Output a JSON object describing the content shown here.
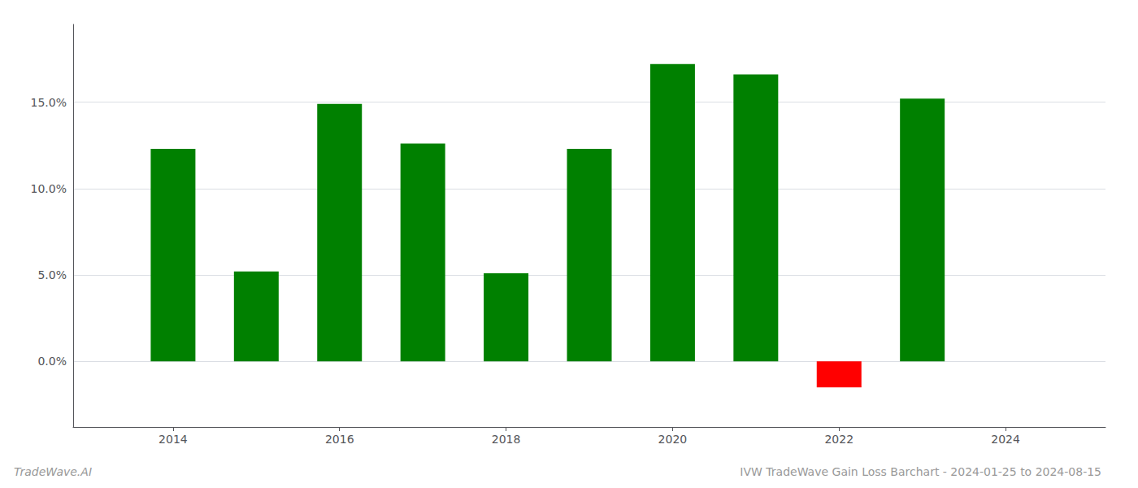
{
  "chart_data": {
    "type": "bar",
    "title": "IVW TradeWave Gain Loss Barchart - 2024-01-25 to 2024-08-15",
    "annotations": [
      "TradeWave.AI"
    ],
    "x": [
      2014,
      2015,
      2016,
      2017,
      2018,
      2019,
      2020,
      2021,
      2022,
      2023
    ],
    "values": [
      0.123,
      0.052,
      0.149,
      0.126,
      0.051,
      0.123,
      0.172,
      0.166,
      -0.015,
      0.152
    ],
    "colors": [
      "#008000",
      "#008000",
      "#008000",
      "#008000",
      "#008000",
      "#008000",
      "#008000",
      "#008000",
      "#ff0000",
      "#008000"
    ],
    "xlim": [
      2012.8,
      2025.2
    ],
    "xticks": [
      2014,
      2016,
      2018,
      2020,
      2022,
      2024
    ],
    "ylim": [
      -0.038,
      0.195
    ],
    "yticks": [
      {
        "value": 0.0,
        "label": "0.0%"
      },
      {
        "value": 0.05,
        "label": "5.0%"
      },
      {
        "value": 0.1,
        "label": "10.0%"
      },
      {
        "value": 0.15,
        "label": "15.0%"
      }
    ],
    "grid": true
  }
}
